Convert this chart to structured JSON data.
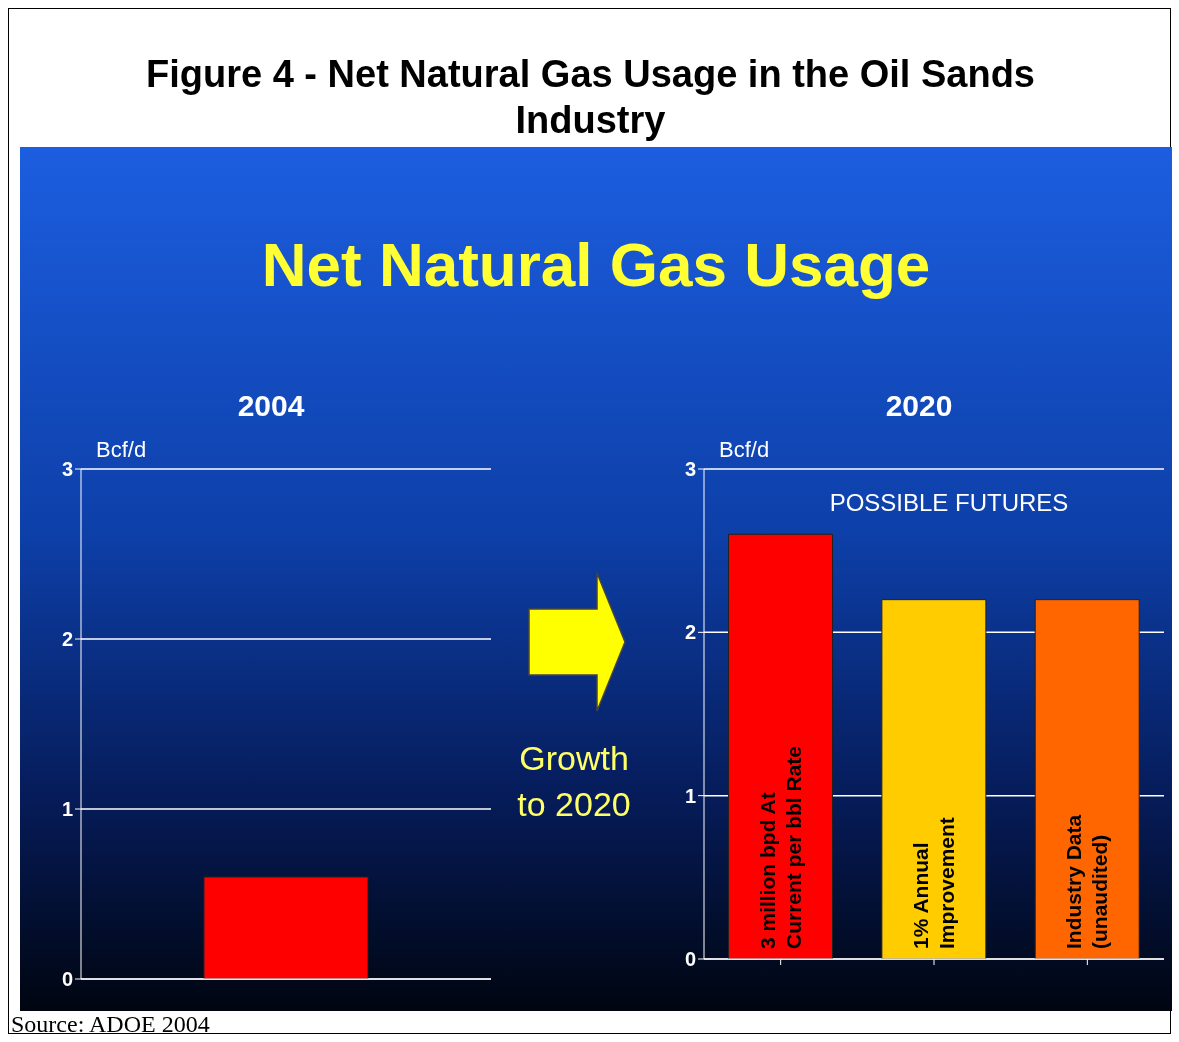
{
  "chart_data": [
    {
      "type": "bar",
      "title": "2004",
      "ylabel": "Bcf/d",
      "categories": [
        null
      ],
      "values": [
        0.6
      ],
      "color": "#ff0000",
      "ylim": [
        0,
        3
      ],
      "yticks": [
        0,
        1,
        2,
        3
      ],
      "grid": "y",
      "tick_labels": "y",
      "annotations": [
        "Figure 4 - Net Natural Gas Usage in the Oil Sands Industry",
        "Net Natural Gas Usage",
        "Growth to 2020",
        "Source: ADOE 2004"
      ]
    },
    {
      "type": "bar",
      "title": "2020",
      "ylabel": "Bcf/d",
      "categories": [
        "3 million bpd At Current per bbl Rate",
        "1% Annual Improvement",
        "Industry Data (unaudited)"
      ],
      "values": [
        2.6,
        2.2,
        2.2
      ],
      "colors": [
        "#ff0000",
        "#ffcc00",
        "#ff6600"
      ],
      "ylim": [
        0,
        3
      ],
      "yticks": [
        0,
        1,
        2,
        3
      ],
      "grid": "y",
      "annotations": [
        "POSSIBLE FUTURES"
      ]
    }
  ]
}
